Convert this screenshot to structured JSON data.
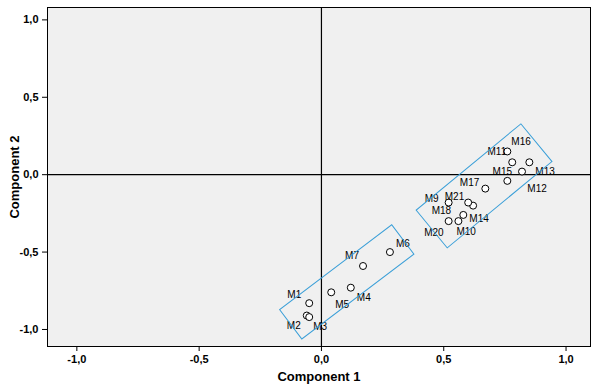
{
  "chart_data": {
    "type": "scatter",
    "x_label": "Component 1",
    "y_label": "Component 2",
    "xlim": [
      -1.12,
      1.1
    ],
    "ylim": [
      -1.11,
      1.08
    ],
    "xticks": [
      {
        "value": -1.0,
        "label": "-1,0"
      },
      {
        "value": -0.5,
        "label": "-0,5"
      },
      {
        "value": 0.0,
        "label": "0,0"
      },
      {
        "value": 0.5,
        "label": "0,5"
      },
      {
        "value": 1.0,
        "label": "1,0"
      }
    ],
    "yticks": [
      {
        "value": -1.0,
        "label": "-1,0"
      },
      {
        "value": -0.5,
        "label": "-0,5"
      },
      {
        "value": 0.0,
        "label": "0,0"
      },
      {
        "value": 0.5,
        "label": "0,5"
      },
      {
        "value": 1.0,
        "label": "1,0"
      }
    ],
    "reference_lines": {
      "x": [
        0
      ],
      "y": [
        0
      ]
    },
    "grid": false,
    "marker": "circle",
    "points": [
      {
        "name": "M1",
        "x": -0.05,
        "y": -0.83
      },
      {
        "name": "M2",
        "x": -0.06,
        "y": -0.91
      },
      {
        "name": "M3",
        "x": -0.05,
        "y": -0.92
      },
      {
        "name": "M4",
        "x": 0.12,
        "y": -0.73
      },
      {
        "name": "M5",
        "x": 0.04,
        "y": -0.76
      },
      {
        "name": "M6",
        "x": 0.28,
        "y": -0.5
      },
      {
        "name": "M7",
        "x": 0.17,
        "y": -0.59
      },
      {
        "name": "M9",
        "x": 0.52,
        "y": -0.18
      },
      {
        "name": "M10",
        "x": 0.56,
        "y": -0.3
      },
      {
        "name": "M11",
        "x": 0.78,
        "y": 0.08
      },
      {
        "name": "M12",
        "x": 0.76,
        "y": -0.04
      },
      {
        "name": "M13",
        "x": 0.85,
        "y": 0.08
      },
      {
        "name": "M14",
        "x": 0.58,
        "y": -0.26
      },
      {
        "name": "M15",
        "x": 0.82,
        "y": 0.02
      },
      {
        "name": "M16",
        "x": 0.76,
        "y": 0.15
      },
      {
        "name": "M17",
        "x": 0.67,
        "y": -0.09
      },
      {
        "name": "M18",
        "x": 0.62,
        "y": -0.2
      },
      {
        "name": "M20",
        "x": 0.52,
        "y": -0.3
      },
      {
        "name": "M21",
        "x": 0.6,
        "y": -0.18
      }
    ],
    "groups": [
      {
        "members": [
          "M1",
          "M2",
          "M3",
          "M4",
          "M5",
          "M6",
          "M7"
        ],
        "color": "#3a9fd8"
      },
      {
        "members": [
          "M9",
          "M10",
          "M11",
          "M12",
          "M13",
          "M14",
          "M15",
          "M16",
          "M17",
          "M18",
          "M20",
          "M21"
        ],
        "color": "#3a9fd8"
      }
    ]
  }
}
